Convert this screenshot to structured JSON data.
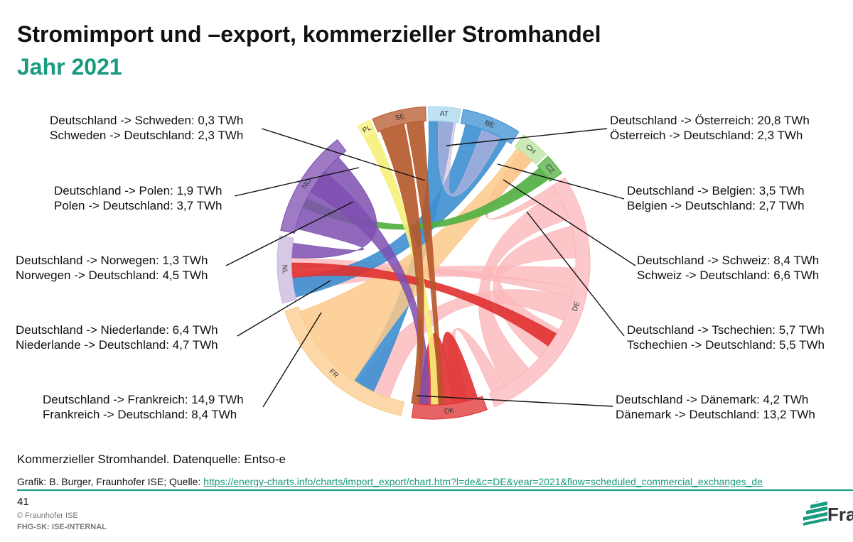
{
  "header": {
    "title": "Stromimport und –export, kommerzieller Stromhandel",
    "subtitle": "Jahr 2021"
  },
  "diagram": {
    "segments": [
      {
        "code": "AT",
        "color": "#a8d8ef"
      },
      {
        "code": "BE",
        "color": "#3d8fd1"
      },
      {
        "code": "CH",
        "color": "#b9e39d"
      },
      {
        "code": "CZ",
        "color": "#4faf3f"
      },
      {
        "code": "DE",
        "color": "#fbb6ba"
      },
      {
        "code": "DK",
        "color": "#e03030"
      },
      {
        "code": "FR",
        "color": "#fbc98a"
      },
      {
        "code": "NL",
        "color": "#c9b7dc"
      },
      {
        "code": "NO",
        "color": "#7e4fb0"
      },
      {
        "code": "PL",
        "color": "#f6f07a"
      },
      {
        "code": "SE",
        "color": "#b5582a"
      }
    ],
    "labels": {
      "left": [
        {
          "line1": "Deutschland -> Schweden: 0,3 TWh",
          "line2": "Schweden -> Deutschland: 2,3 TWh"
        },
        {
          "line1": "Deutschland -> Polen: 1,9 TWh",
          "line2": "Polen -> Deutschland: 3,7 TWh"
        },
        {
          "line1": "Deutschland -> Norwegen: 1,3 TWh",
          "line2": "Norwegen -> Deutschland: 4,5 TWh"
        },
        {
          "line1": "Deutschland -> Niederlande: 6,4 TWh",
          "line2": "Niederlande -> Deutschland: 4,7 TWh"
        },
        {
          "line1": "Deutschland -> Frankreich: 14,9 TWh",
          "line2": "Frankreich -> Deutschland: 8,4 TWh"
        }
      ],
      "right": [
        {
          "line1": "Deutschland -> Österreich: 20,8 TWh",
          "line2": "Österreich -> Deutschland: 2,3 TWh"
        },
        {
          "line1": "Deutschland -> Belgien: 3,5 TWh",
          "line2": "Belgien -> Deutschland: 2,7 TWh"
        },
        {
          "line1": "Deutschland -> Schweiz: 8,4 TWh",
          "line2": "Schweiz -> Deutschland: 6,6 TWh"
        },
        {
          "line1": "Deutschland -> Tschechien: 5,7 TWh",
          "line2": "Tschechien -> Deutschland: 5,5 TWh"
        },
        {
          "line1": "Deutschland -> Dänemark: 4,2 TWh",
          "line2": "Dänemark -> Deutschland: 13,2 TWh"
        }
      ]
    }
  },
  "footer": {
    "note": "Kommerzieller Stromhandel. Datenquelle: Entso-e",
    "credit_prefix": "Grafik: B. Burger, Fraunhofer ISE; Quelle: ",
    "credit_link": "https://energy-charts.info/charts/import_export/chart.htm?l=de&c=DE&year=2021&flow=scheduled_commercial_exchanges_de",
    "page_number": "41",
    "copyright": "© Fraunhofer ISE",
    "classification": "FHG-SK: ISE-INTERNAL",
    "logo_text": "Fraunhofer",
    "logo_color": "#1a9a7e"
  }
}
